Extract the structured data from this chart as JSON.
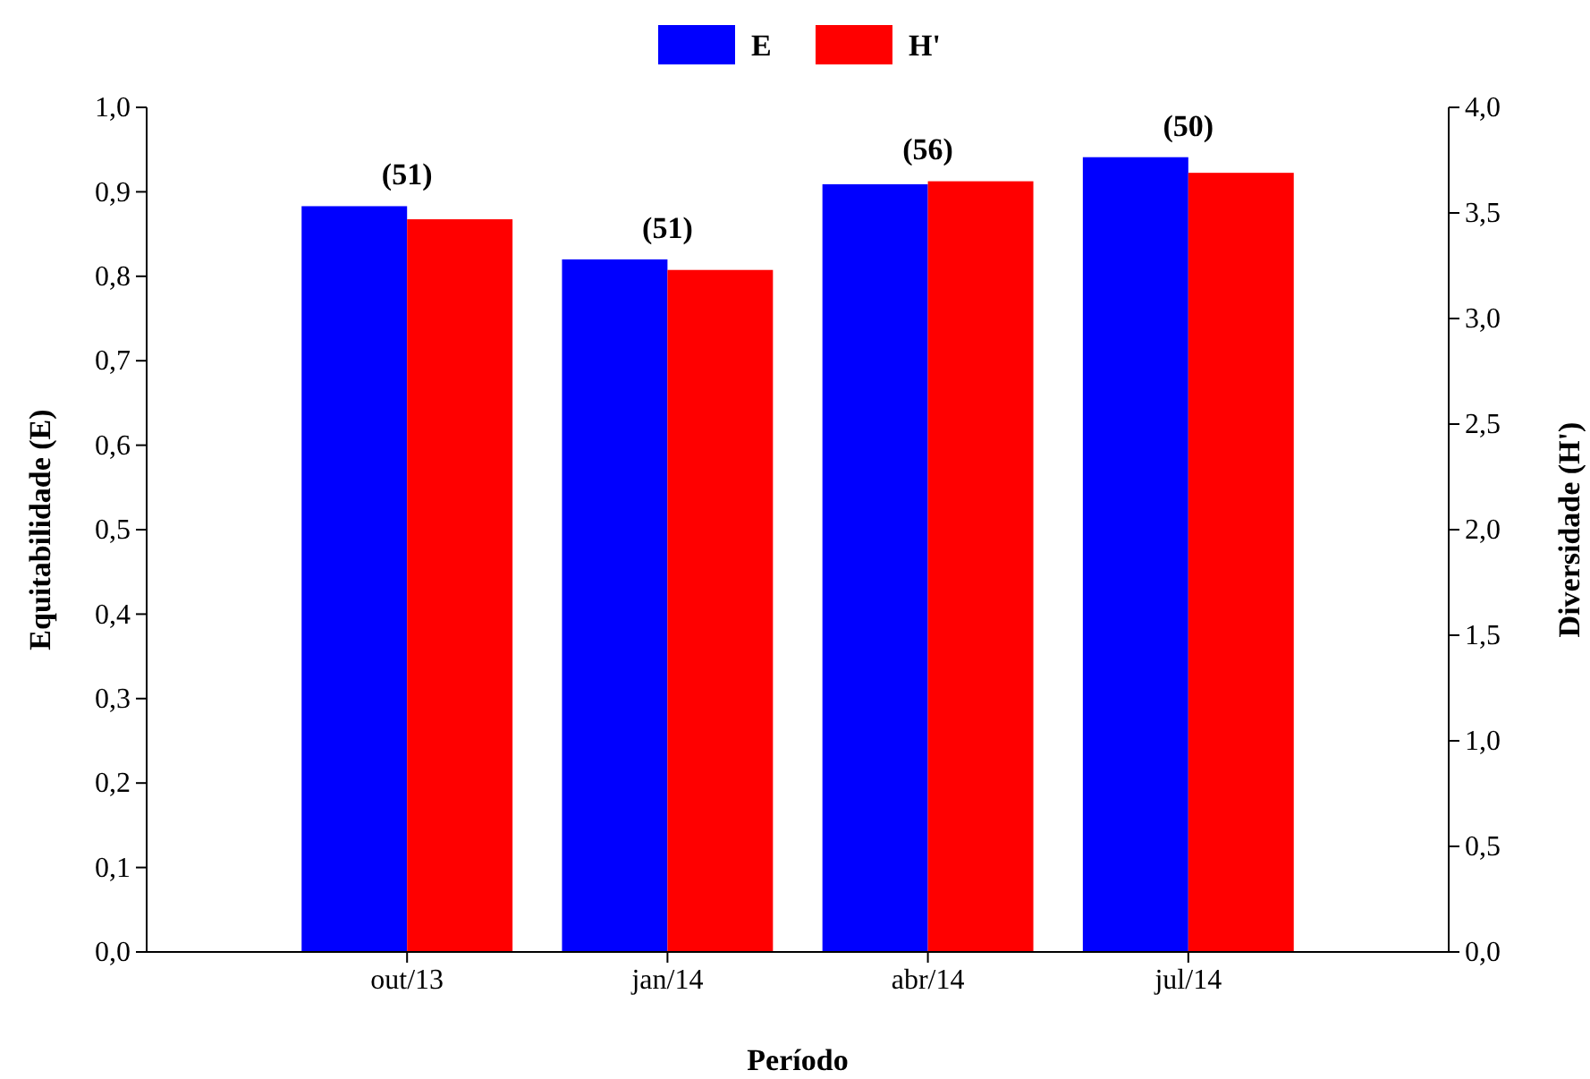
{
  "chart_data": {
    "type": "bar",
    "xlabel": "Período",
    "ylabel": "Equitabilidade (E)",
    "y2label": "Diversidade (H')",
    "categories": [
      "out/13",
      "jan/14",
      "abr/14",
      "jul/14"
    ],
    "series": [
      {
        "name": "E",
        "color": "#0000ff",
        "values": [
          0.883,
          0.82,
          0.909,
          0.941
        ]
      },
      {
        "name": "H'",
        "color": "#ff0000",
        "axis": "y2",
        "values": [
          3.47,
          3.23,
          3.65,
          3.69
        ]
      }
    ],
    "ylim": [
      0,
      1
    ],
    "yticks": [
      {
        "value": 0,
        "label": "0,0"
      },
      {
        "value": 0.1,
        "label": "0,1"
      },
      {
        "value": 0.2,
        "label": "0,2"
      },
      {
        "value": 0.3,
        "label": "0,3"
      },
      {
        "value": 0.4,
        "label": "0,4"
      },
      {
        "value": 0.5,
        "label": "0,5"
      },
      {
        "value": 0.6,
        "label": "0,6"
      },
      {
        "value": 0.7,
        "label": "0,7"
      },
      {
        "value": 0.8,
        "label": "0,8"
      },
      {
        "value": 0.9,
        "label": "0,9"
      },
      {
        "value": 1,
        "label": "1,0"
      }
    ],
    "y2lim": [
      0,
      4
    ],
    "y2ticks": [
      {
        "value": 0,
        "label": "0,0"
      },
      {
        "value": 0.5,
        "label": "0,5"
      },
      {
        "value": 1,
        "label": "1,0"
      },
      {
        "value": 1.5,
        "label": "1,5"
      },
      {
        "value": 2,
        "label": "2,0"
      },
      {
        "value": 2.5,
        "label": "2,5"
      },
      {
        "value": 3,
        "label": "3,0"
      },
      {
        "value": 3.5,
        "label": "3,5"
      },
      {
        "value": 4,
        "label": "4,0"
      }
    ],
    "annotations": [
      {
        "text": "(51)",
        "x": "out/13",
        "y": 0.883
      },
      {
        "text": "(51)",
        "x": "jan/14",
        "y": 0.82
      },
      {
        "text": "(56)",
        "x": "abr/14",
        "y": 0.913
      },
      {
        "text": "(50)",
        "x": "jul/14",
        "y": 0.941
      }
    ],
    "legend": "top",
    "grid": false
  }
}
